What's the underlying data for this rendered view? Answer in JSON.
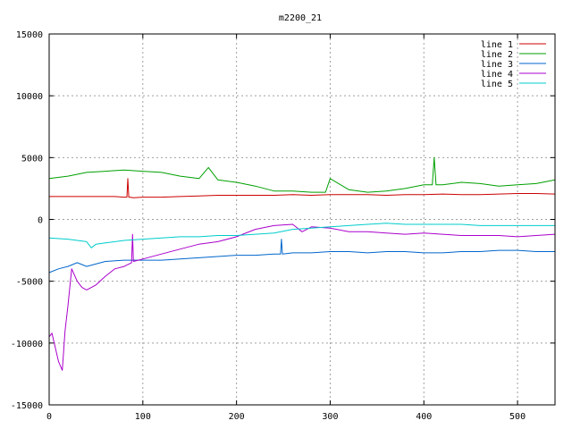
{
  "chart_data": {
    "type": "line",
    "title": "m2200_21",
    "xlabel": "",
    "ylabel": "",
    "xlim": [
      0,
      540
    ],
    "ylim": [
      -15000,
      15000
    ],
    "xticks": [
      0,
      100,
      200,
      300,
      400,
      500
    ],
    "yticks": [
      -15000,
      -10000,
      -5000,
      0,
      5000,
      10000,
      15000
    ],
    "grid": true,
    "legend": "top-right",
    "series": [
      {
        "name": "line 1",
        "color": "#cc0000",
        "x": [
          0,
          60,
          70,
          80,
          83,
          84,
          85,
          86,
          90,
          100,
          120,
          140,
          160,
          180,
          200,
          220,
          240,
          260,
          280,
          300,
          320,
          340,
          360,
          380,
          400,
          420,
          440,
          460,
          480,
          500,
          520,
          540
        ],
        "y": [
          1850,
          1850,
          1850,
          1800,
          1800,
          3300,
          1800,
          1800,
          1750,
          1800,
          1800,
          1850,
          1900,
          1950,
          1950,
          1950,
          1950,
          2000,
          1950,
          2000,
          2000,
          2000,
          1950,
          2000,
          2000,
          2050,
          2000,
          2000,
          2050,
          2100,
          2100,
          2050
        ]
      },
      {
        "name": "line 2",
        "color": "#00a000",
        "x": [
          0,
          20,
          40,
          60,
          80,
          100,
          120,
          140,
          160,
          170,
          180,
          200,
          220,
          240,
          260,
          280,
          295,
          300,
          320,
          340,
          360,
          380,
          400,
          409,
          411,
          413,
          420,
          440,
          460,
          480,
          500,
          520,
          540
        ],
        "y": [
          3300,
          3500,
          3800,
          3900,
          4000,
          3900,
          3800,
          3500,
          3300,
          4200,
          3200,
          3000,
          2700,
          2300,
          2300,
          2200,
          2200,
          3300,
          2400,
          2200,
          2300,
          2500,
          2800,
          2800,
          5000,
          2800,
          2800,
          3000,
          2900,
          2700,
          2800,
          2900,
          3200
        ]
      },
      {
        "name": "line 3",
        "color": "#0066cc",
        "x": [
          0,
          10,
          20,
          30,
          40,
          60,
          80,
          100,
          120,
          140,
          160,
          180,
          200,
          220,
          240,
          247,
          248,
          249,
          260,
          280,
          300,
          320,
          340,
          360,
          380,
          400,
          420,
          440,
          460,
          480,
          500,
          520,
          540
        ],
        "y": [
          -4300,
          -4000,
          -3800,
          -3500,
          -3800,
          -3400,
          -3300,
          -3300,
          -3300,
          -3200,
          -3100,
          -3000,
          -2900,
          -2900,
          -2800,
          -2800,
          -1600,
          -2800,
          -2700,
          -2700,
          -2600,
          -2600,
          -2700,
          -2600,
          -2600,
          -2700,
          -2700,
          -2600,
          -2600,
          -2500,
          -2500,
          -2600,
          -2600
        ]
      },
      {
        "name": "line 4",
        "color": "#aa00cc",
        "x": [
          0,
          3,
          7,
          10,
          14,
          17,
          20,
          24,
          30,
          35,
          40,
          50,
          60,
          70,
          80,
          88,
          89,
          90,
          95,
          100,
          120,
          140,
          160,
          180,
          200,
          220,
          240,
          260,
          270,
          280,
          300,
          320,
          340,
          360,
          380,
          400,
          420,
          440,
          460,
          480,
          500,
          520,
          540
        ],
        "y": [
          -9500,
          -9200,
          -10500,
          -11500,
          -12200,
          -9000,
          -7000,
          -4000,
          -5000,
          -5500,
          -5700,
          -5300,
          -4600,
          -4000,
          -3800,
          -3500,
          -1200,
          -3400,
          -3300,
          -3200,
          -2800,
          -2400,
          -2000,
          -1800,
          -1400,
          -800,
          -500,
          -400,
          -1000,
          -600,
          -700,
          -1000,
          -1000,
          -1100,
          -1200,
          -1100,
          -1200,
          -1300,
          -1300,
          -1300,
          -1400,
          -1300,
          -1200
        ]
      },
      {
        "name": "line 5",
        "color": "#00cccc",
        "x": [
          0,
          20,
          40,
          45,
          50,
          60,
          80,
          100,
          120,
          140,
          160,
          180,
          200,
          220,
          240,
          260,
          280,
          300,
          320,
          340,
          360,
          380,
          400,
          420,
          440,
          460,
          480,
          500,
          520,
          540
        ],
        "y": [
          -1500,
          -1600,
          -1800,
          -2300,
          -2000,
          -1900,
          -1700,
          -1600,
          -1500,
          -1400,
          -1400,
          -1300,
          -1300,
          -1200,
          -1100,
          -800,
          -700,
          -600,
          -500,
          -400,
          -300,
          -400,
          -400,
          -400,
          -400,
          -500,
          -500,
          -500,
          -500,
          -500
        ]
      }
    ]
  }
}
